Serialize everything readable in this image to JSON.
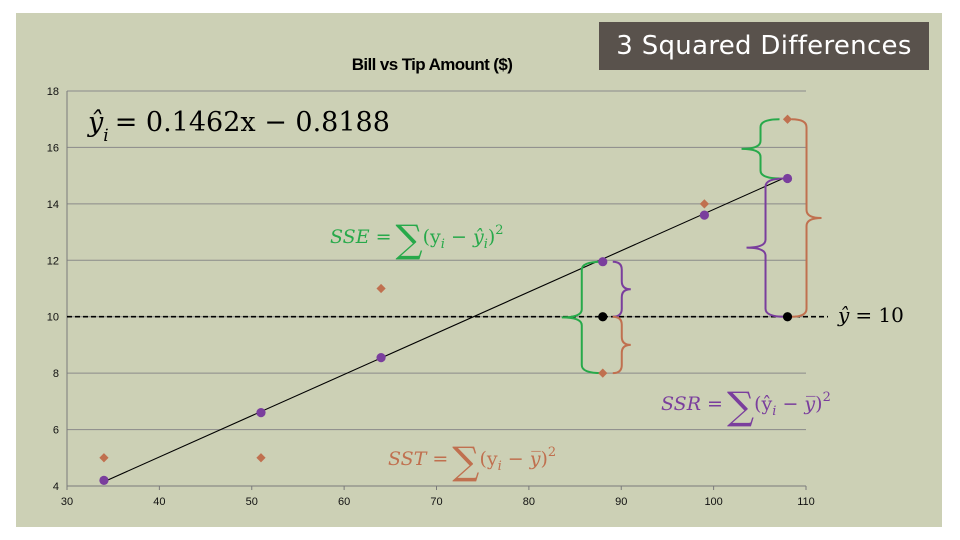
{
  "badge": {
    "text": "3 Squared Differences"
  },
  "chart_data": {
    "type": "scatter",
    "title": "Bill vs Tip Amount ($)",
    "xlabel": "",
    "ylabel": "",
    "xlim": [
      30,
      110
    ],
    "ylim": [
      4,
      18
    ],
    "xticks": [
      30,
      40,
      50,
      60,
      70,
      80,
      90,
      100,
      110
    ],
    "yticks": [
      4,
      6,
      8,
      10,
      12,
      14,
      16,
      18
    ],
    "grid": {
      "horizontal": true,
      "vertical": false
    },
    "series": [
      {
        "marker": "diamond",
        "color": "#c0704f",
        "x": [
          34,
          51,
          64,
          88,
          99,
          108
        ],
        "y": [
          5,
          5,
          11,
          8,
          14,
          17
        ]
      },
      {
        "marker": "circle",
        "color": "#7a3e9d",
        "x": [
          34,
          51,
          64,
          88,
          99,
          108
        ],
        "y": [
          4.2,
          6.6,
          8.55,
          11.95,
          13.6,
          14.9
        ]
      }
    ],
    "mean_points": {
      "color": "#000000",
      "x": [
        88,
        108
      ],
      "y": [
        10,
        10
      ]
    },
    "regression": {
      "slope": 0.1462,
      "intercept": -0.8188,
      "x_range": [
        34,
        108
      ]
    },
    "mean_line": {
      "y": 10,
      "style": "dashed"
    },
    "colors": {
      "sse": "#27a94a",
      "ssr": "#7a3e9d",
      "sst": "#c0704f"
    },
    "annotations": {
      "equation": {
        "lhs": "ŷ",
        "sub": "i",
        "rhs": "= 0.1462x − 0.8188"
      },
      "mean_label": {
        "lhs": "ŷ",
        "rhs": "= 10"
      },
      "sse": {
        "name": "SSE",
        "eq": "=",
        "sum": "∑",
        "term_open": "(y",
        "term_sub": "i",
        "term_mid": " − ŷ",
        "term_sub2": "i",
        "term_close": ")",
        "power": "2"
      },
      "ssr": {
        "name": "SSR",
        "eq": "=",
        "sum": "∑",
        "term_open": "(ŷ",
        "term_sub": "i",
        "term_mid": " − y̅",
        "term_close": ")",
        "power": "2"
      },
      "sst": {
        "name": "SST",
        "eq": "=",
        "sum": "∑",
        "term_open": "(y",
        "term_sub": "i",
        "term_mid": " − y̅",
        "term_close": ")",
        "power": "2"
      }
    }
  }
}
